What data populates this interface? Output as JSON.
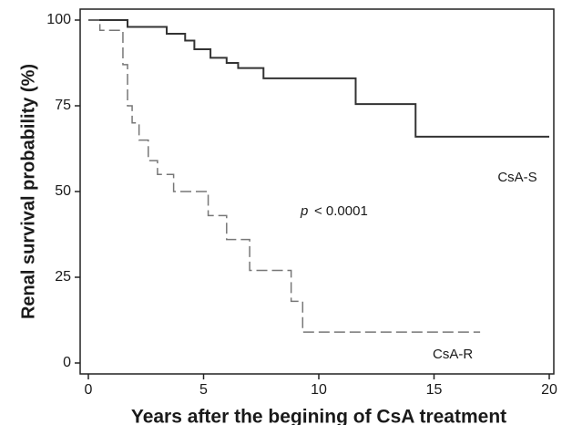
{
  "chart_data": {
    "type": "line",
    "step": true,
    "xlabel": "Years after the begining of CsA treatment",
    "ylabel": "Renal survival probability (%)",
    "xlim": [
      0,
      20
    ],
    "xticks": [
      0,
      5,
      10,
      15,
      20
    ],
    "ylim": [
      0,
      100
    ],
    "yticks": [
      0,
      25,
      50,
      75,
      100
    ],
    "series": [
      {
        "name": "CsA-S",
        "color": "#333333",
        "dash": false,
        "x": [
          0,
          1.7,
          3.4,
          4.2,
          4.6,
          5.3,
          6.0,
          6.5,
          7.6,
          11.6,
          14.2,
          20
        ],
        "values": [
          100,
          98,
          96,
          94,
          91.5,
          89,
          87.5,
          86,
          83,
          75.5,
          66,
          66
        ]
      },
      {
        "name": "CsA-R",
        "color": "#777777",
        "dash": true,
        "x": [
          0,
          0.5,
          1.5,
          1.7,
          1.9,
          2.2,
          2.6,
          3.0,
          3.7,
          5.2,
          6.0,
          7.0,
          8.8,
          9.3,
          17
        ],
        "values": [
          100,
          97,
          87,
          75,
          70,
          65,
          59,
          55,
          50,
          43,
          36,
          27,
          18,
          9,
          9
        ]
      }
    ],
    "p_label": "p",
    "p_value": "< 0.0001"
  }
}
